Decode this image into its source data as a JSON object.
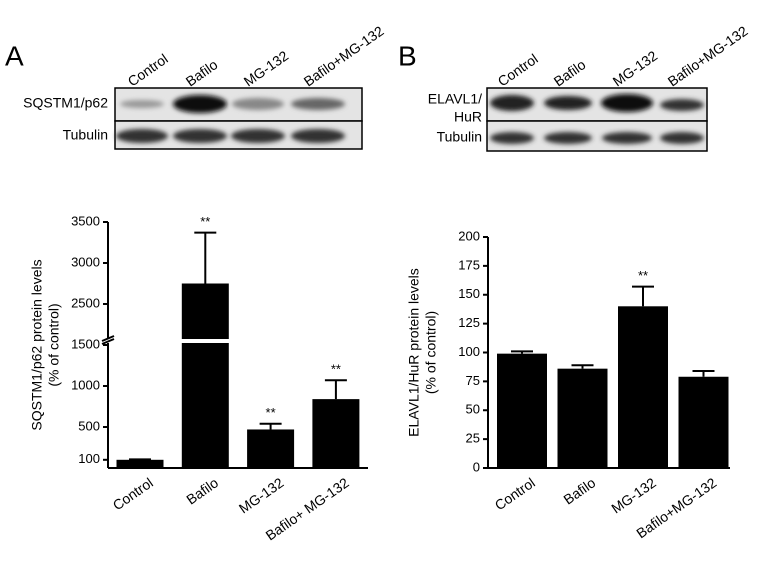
{
  "panels": [
    {
      "letter": "A",
      "blot": {
        "lanes": [
          "Control",
          "Bafilo",
          "MG-132",
          "Bafilo+MG-132"
        ],
        "rows": [
          [
            "SQSTM1/p62"
          ],
          [
            "Tubulin"
          ]
        ]
      }
    },
    {
      "letter": "B",
      "blot": {
        "lanes": [
          "Control",
          "Bafilo",
          "MG-132",
          "Bafilo+MG-132"
        ],
        "rows": [
          [
            "ELAVL1/",
            "HuR"
          ],
          [
            "Tubulin"
          ]
        ]
      }
    }
  ],
  "chart_data": [
    {
      "type": "bar",
      "ylabel": [
        "SQSTM1/p62 protein levels",
        "(% of control)"
      ],
      "categories": [
        "Control",
        "Bafilo",
        "MG-132",
        "Bafilo+ MG-132"
      ],
      "values": [
        100,
        2750,
        470,
        840
      ],
      "errors": [
        5,
        620,
        70,
        230
      ],
      "significance": [
        null,
        "**",
        "**",
        "**"
      ],
      "color": "#000000",
      "ylim": [
        0,
        3500
      ],
      "ybreak": [
        1500,
        2000
      ],
      "yticks": [
        100,
        500,
        1000,
        1500,
        2500,
        3000,
        3500
      ]
    },
    {
      "type": "bar",
      "ylabel": [
        "ELAVL1/HuR protein levels",
        "(% of control)"
      ],
      "categories": [
        "Control",
        "Bafilo",
        "MG-132",
        "Bafilo+MG-132"
      ],
      "values": [
        99,
        86,
        140,
        79
      ],
      "errors": [
        2,
        3,
        17,
        5
      ],
      "significance": [
        null,
        null,
        "**",
        null
      ],
      "color": "#000000",
      "ylim": [
        0,
        200
      ],
      "yticks": [
        0,
        25,
        50,
        75,
        100,
        125,
        150,
        175,
        200
      ]
    }
  ]
}
